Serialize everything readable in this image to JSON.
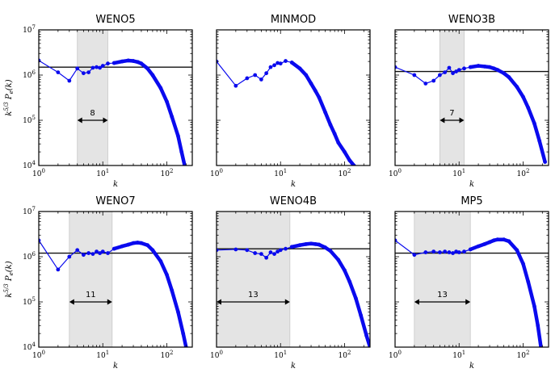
{
  "chart_data": [
    {
      "type": "line",
      "title": "WENO5",
      "xlabel": "k",
      "ylabel": "k^{5/3} P_e(k)",
      "xscale": "log",
      "yscale": "log",
      "xlim": [
        1,
        250
      ],
      "ylim": [
        10000,
        10000000
      ],
      "xtick_labels": [
        "10^0",
        "10^1",
        "10^2"
      ],
      "ytick_labels": [
        "10^4",
        "10^5",
        "10^6",
        "10^7"
      ],
      "reference_level": 1500000,
      "band": [
        4,
        12
      ],
      "annotation": "8",
      "series": [
        {
          "name": "spectrum",
          "x": [
            1,
            2,
            3,
            4,
            5,
            6,
            7,
            8,
            9,
            10,
            12,
            15,
            20,
            25,
            30,
            35,
            40,
            50,
            60,
            80,
            100,
            120,
            150,
            170,
            190
          ],
          "y": [
            2100000,
            1150000,
            750000,
            1400000,
            1100000,
            1150000,
            1450000,
            1500000,
            1450000,
            1600000,
            1800000,
            1850000,
            2000000,
            2100000,
            2050000,
            1950000,
            1800000,
            1400000,
            1000000,
            520000,
            260000,
            120000,
            45000,
            20000,
            10000
          ]
        }
      ]
    },
    {
      "type": "line",
      "title": "MINMOD",
      "xlabel": "k",
      "ylabel": "",
      "xscale": "log",
      "yscale": "log",
      "xlim": [
        1,
        250
      ],
      "ylim": [
        10000,
        10000000
      ],
      "xtick_labels": [
        "10^0",
        "10^1",
        "10^2"
      ],
      "ytick_labels": [],
      "reference_level": null,
      "band": null,
      "annotation": "",
      "series": [
        {
          "name": "spectrum",
          "x": [
            1,
            2,
            3,
            4,
            5,
            6,
            7,
            8,
            9,
            10,
            12,
            15,
            20,
            25,
            30,
            35,
            40,
            50,
            60,
            70,
            80,
            100,
            120,
            140
          ],
          "y": [
            2000000,
            580000,
            850000,
            1000000,
            800000,
            1100000,
            1500000,
            1650000,
            1850000,
            1800000,
            2050000,
            1900000,
            1400000,
            1000000,
            650000,
            450000,
            320000,
            150000,
            80000,
            50000,
            32000,
            20000,
            13000,
            10000
          ]
        }
      ]
    },
    {
      "type": "line",
      "title": "WENO3B",
      "xlabel": "k",
      "ylabel": "",
      "xscale": "log",
      "yscale": "log",
      "xlim": [
        1,
        250
      ],
      "ylim": [
        10000,
        10000000
      ],
      "xtick_labels": [
        "10^0",
        "10^1",
        "10^2"
      ],
      "ytick_labels": [],
      "reference_level": 1200000,
      "band": [
        5,
        12
      ],
      "annotation": "7",
      "series": [
        {
          "name": "spectrum",
          "x": [
            1,
            2,
            3,
            4,
            5,
            6,
            7,
            8,
            9,
            10,
            12,
            15,
            20,
            25,
            30,
            35,
            40,
            50,
            60,
            80,
            100,
            120,
            150,
            180,
            220
          ],
          "y": [
            1500000,
            1000000,
            650000,
            750000,
            1000000,
            1150000,
            1450000,
            1100000,
            1200000,
            1300000,
            1400000,
            1500000,
            1600000,
            1550000,
            1500000,
            1400000,
            1300000,
            1100000,
            900000,
            550000,
            330000,
            190000,
            85000,
            35000,
            12000
          ]
        }
      ]
    },
    {
      "type": "line",
      "title": "WENO7",
      "xlabel": "k",
      "ylabel": "k^{5/3} P_e(k)",
      "xscale": "log",
      "yscale": "log",
      "xlim": [
        1,
        250
      ],
      "ylim": [
        10000,
        10000000
      ],
      "xtick_labels": [
        "10^0",
        "10^1",
        "10^2"
      ],
      "ytick_labels": [
        "10^4",
        "10^5",
        "10^6",
        "10^7"
      ],
      "reference_level": 1200000,
      "band": [
        3,
        14
      ],
      "annotation": "11",
      "series": [
        {
          "name": "spectrum",
          "x": [
            1,
            2,
            3,
            4,
            5,
            6,
            7,
            8,
            9,
            10,
            12,
            15,
            20,
            25,
            30,
            35,
            40,
            50,
            60,
            80,
            100,
            120,
            150,
            180,
            200
          ],
          "y": [
            2300000,
            520000,
            1000000,
            1400000,
            1100000,
            1200000,
            1150000,
            1300000,
            1200000,
            1300000,
            1200000,
            1500000,
            1700000,
            1850000,
            2000000,
            2050000,
            2000000,
            1800000,
            1400000,
            800000,
            400000,
            180000,
            60000,
            20000,
            10000
          ]
        }
      ]
    },
    {
      "type": "line",
      "title": "WENO4B",
      "xlabel": "k",
      "ylabel": "",
      "xscale": "log",
      "yscale": "log",
      "xlim": [
        1,
        250
      ],
      "ylim": [
        10000,
        10000000
      ],
      "xtick_labels": [
        "10^0",
        "10^1",
        "10^2"
      ],
      "ytick_labels": [],
      "reference_level": 1500000,
      "band": [
        1,
        14
      ],
      "annotation": "13",
      "series": [
        {
          "name": "spectrum",
          "x": [
            1,
            2,
            3,
            4,
            5,
            6,
            7,
            8,
            9,
            10,
            12,
            15,
            20,
            25,
            30,
            35,
            40,
            50,
            60,
            80,
            100,
            120,
            150,
            180,
            220,
            250
          ],
          "y": [
            1400000,
            1450000,
            1400000,
            1200000,
            1150000,
            950000,
            1250000,
            1150000,
            1300000,
            1400000,
            1500000,
            1650000,
            1800000,
            1900000,
            1950000,
            1900000,
            1850000,
            1600000,
            1350000,
            850000,
            500000,
            280000,
            120000,
            50000,
            18000,
            10000
          ]
        }
      ]
    },
    {
      "type": "line",
      "title": "MP5",
      "xlabel": "k",
      "ylabel": "",
      "xscale": "log",
      "yscale": "log",
      "xlim": [
        1,
        250
      ],
      "ylim": [
        10000,
        10000000
      ],
      "xtick_labels": [
        "10^0",
        "10^1",
        "10^2"
      ],
      "ytick_labels": [],
      "reference_level": 1200000,
      "band": [
        2,
        15
      ],
      "annotation": "13",
      "series": [
        {
          "name": "spectrum",
          "x": [
            1,
            2,
            3,
            4,
            5,
            6,
            7,
            8,
            9,
            10,
            12,
            15,
            20,
            25,
            30,
            35,
            40,
            50,
            60,
            80,
            100,
            120,
            150,
            170,
            190
          ],
          "y": [
            2300000,
            1100000,
            1250000,
            1300000,
            1250000,
            1300000,
            1250000,
            1200000,
            1300000,
            1250000,
            1300000,
            1450000,
            1700000,
            1900000,
            2100000,
            2300000,
            2400000,
            2400000,
            2200000,
            1400000,
            700000,
            280000,
            80000,
            30000,
            10000
          ]
        }
      ]
    }
  ]
}
